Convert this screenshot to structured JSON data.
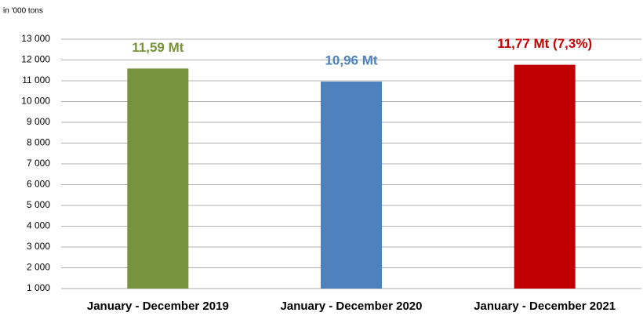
{
  "chart_data": {
    "type": "bar",
    "y_axis_label": "in '000 tons",
    "categories": [
      "January - December 2019",
      "January - December 2020",
      "January - December 2021"
    ],
    "values": [
      11590,
      10960,
      11770
    ],
    "value_labels": [
      "11,59 Mt",
      "10,96 Mt",
      "11,77 Mt (7,3%)"
    ],
    "colors": [
      "#77933c",
      "#4f81bd",
      "#c00000"
    ],
    "ylim": [
      1000,
      13000
    ],
    "yticks": [
      {
        "value": 1000,
        "label": "1 000"
      },
      {
        "value": 2000,
        "label": "2 000"
      },
      {
        "value": 3000,
        "label": "3 000"
      },
      {
        "value": 4000,
        "label": "4 000"
      },
      {
        "value": 5000,
        "label": "5 000"
      },
      {
        "value": 6000,
        "label": "6 000"
      },
      {
        "value": 7000,
        "label": "7 000"
      },
      {
        "value": 8000,
        "label": "8 000"
      },
      {
        "value": 9000,
        "label": "9 000"
      },
      {
        "value": 10000,
        "label": "10 000"
      },
      {
        "value": 11000,
        "label": "11 000"
      },
      {
        "value": 12000,
        "label": "12 000"
      },
      {
        "value": 13000,
        "label": "13 000"
      }
    ],
    "grid": true
  }
}
